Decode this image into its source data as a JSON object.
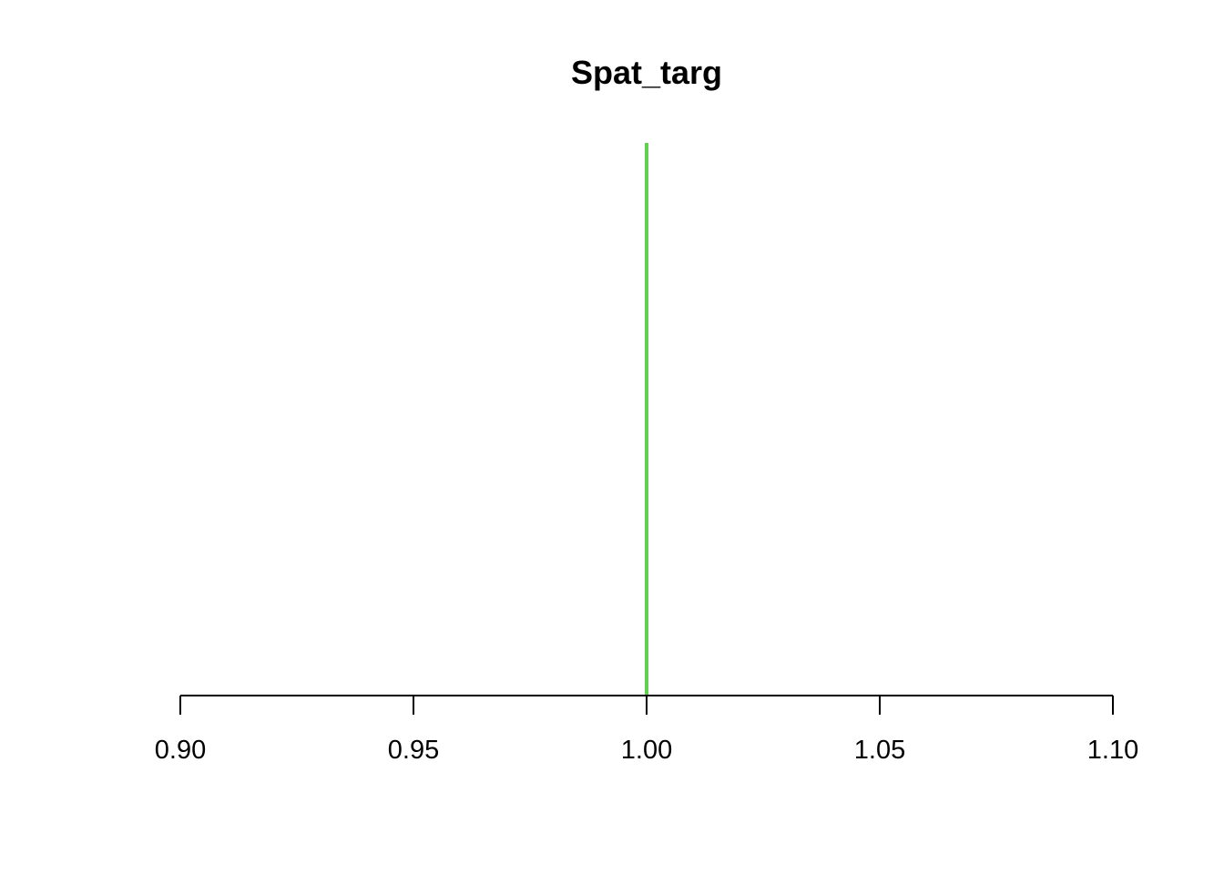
{
  "chart_data": {
    "type": "line",
    "title": "Spat_targ",
    "xlabel": "",
    "ylabel": "",
    "xlim": [
      0.9,
      1.1
    ],
    "x_ticks": [
      0.9,
      0.95,
      1.0,
      1.05,
      1.1
    ],
    "x_tick_labels": [
      "0.90",
      "0.95",
      "1.00",
      "1.05",
      "1.10"
    ],
    "series": [
      {
        "x": [
          1.0,
          1.0
        ],
        "y": [
          0,
          1
        ],
        "color": "#61D04F"
      }
    ],
    "grid": false,
    "legend": "none",
    "y_axis_shown": false
  }
}
